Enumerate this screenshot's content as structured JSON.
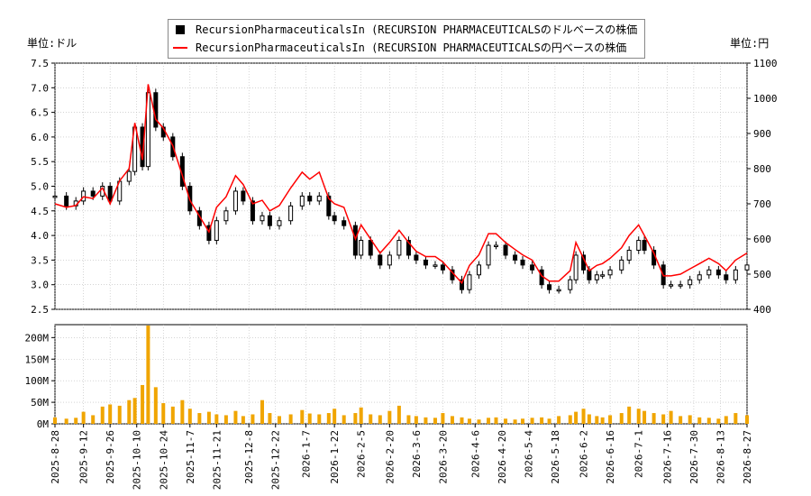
{
  "legend": {
    "usd_label": "RecursionPharmaceuticalsIn (RECURSION PHARMACEUTICALSのドルベースの株価",
    "jpy_label": "RecursionPharmaceuticalsIn (RECURSION PHARMACEUTICALSの円ベースの株価"
  },
  "units": {
    "left": "単位:ドル",
    "right": "単位:円"
  },
  "colors": {
    "candle": "#000000",
    "jpy_line": "#ff0000",
    "volume": "#f0a500",
    "grid": "#bbbbbb"
  },
  "chart_data": [
    {
      "type": "line",
      "title": "",
      "y_left_range": [
        2.5,
        7.5
      ],
      "y_left_ticks": [
        "2.5",
        "3.0",
        "3.5",
        "4.0",
        "4.5",
        "5.0",
        "5.5",
        "6.0",
        "6.5",
        "7.0",
        "7.5"
      ],
      "y_right_range": [
        400,
        1100
      ],
      "y_right_ticks": [
        "400",
        "500",
        "600",
        "700",
        "800",
        "900",
        "1000",
        "1100"
      ],
      "grid": true,
      "legend_position": "top-center",
      "x_date_range": [
        "2025-08-28",
        "2026-08-27"
      ],
      "series": [
        {
          "name": "RecursionPharmaceuticalsIn (RECURSION PHARMACEUTICALSのドルベースの株価",
          "x": [
            "2025-08-28",
            "2025-09-03",
            "2025-09-08",
            "2025-09-12",
            "2025-09-17",
            "2025-09-22",
            "2025-09-26",
            "2025-10-01",
            "2025-10-06",
            "2025-10-09",
            "2025-10-13",
            "2025-10-16",
            "2025-10-20",
            "2025-10-24",
            "2025-10-29",
            "2025-11-03",
            "2025-11-07",
            "2025-11-12",
            "2025-11-17",
            "2025-11-21",
            "2025-11-26",
            "2025-12-01",
            "2025-12-05",
            "2025-12-10",
            "2025-12-15",
            "2025-12-19",
            "2025-12-24",
            "2025-12-30",
            "2026-01-05",
            "2026-01-09",
            "2026-01-14",
            "2026-01-19",
            "2026-01-22",
            "2026-01-27",
            "2026-02-02",
            "2026-02-05",
            "2026-02-10",
            "2026-02-15",
            "2026-02-20",
            "2026-02-25",
            "2026-03-02",
            "2026-03-06",
            "2026-03-11",
            "2026-03-16",
            "2026-03-20",
            "2026-03-25",
            "2026-03-30",
            "2026-04-03",
            "2026-04-08",
            "2026-04-13",
            "2026-04-17",
            "2026-04-22",
            "2026-04-27",
            "2026-05-01",
            "2026-05-06",
            "2026-05-11",
            "2026-05-15",
            "2026-05-20",
            "2026-05-26",
            "2026-05-29",
            "2026-06-02",
            "2026-06-05",
            "2026-06-09",
            "2026-06-12",
            "2026-06-16",
            "2026-06-22",
            "2026-06-26",
            "2026-07-01",
            "2026-07-04",
            "2026-07-09",
            "2026-07-14",
            "2026-07-18",
            "2026-07-23",
            "2026-07-28",
            "2026-08-02",
            "2026-08-07",
            "2026-08-12",
            "2026-08-16",
            "2026-08-21",
            "2026-08-27"
          ],
          "values": [
            4.8,
            4.6,
            4.7,
            4.9,
            4.8,
            5.0,
            4.7,
            5.1,
            5.3,
            6.2,
            5.4,
            6.9,
            6.2,
            6.0,
            5.6,
            5.0,
            4.5,
            4.2,
            3.9,
            4.3,
            4.5,
            4.9,
            4.7,
            4.3,
            4.4,
            4.2,
            4.3,
            4.6,
            4.8,
            4.7,
            4.8,
            4.4,
            4.3,
            4.2,
            3.6,
            3.9,
            3.6,
            3.4,
            3.6,
            3.9,
            3.6,
            3.5,
            3.4,
            3.4,
            3.3,
            3.1,
            2.9,
            3.2,
            3.4,
            3.8,
            3.8,
            3.6,
            3.5,
            3.4,
            3.3,
            3.0,
            2.9,
            2.9,
            3.1,
            3.6,
            3.3,
            3.1,
            3.2,
            3.2,
            3.3,
            3.5,
            3.7,
            3.9,
            3.7,
            3.4,
            3.0,
            3.0,
            3.0,
            3.1,
            3.2,
            3.3,
            3.2,
            3.1,
            3.3,
            3.4
          ]
        },
        {
          "name": "RecursionPharmaceuticalsIn (RECURSION PHARMACEUTICALSの円ベースの株価",
          "x": [
            "2025-08-28",
            "2025-09-03",
            "2025-09-08",
            "2025-09-12",
            "2025-09-17",
            "2025-09-22",
            "2025-09-26",
            "2025-10-01",
            "2025-10-06",
            "2025-10-09",
            "2025-10-13",
            "2025-10-16",
            "2025-10-20",
            "2025-10-24",
            "2025-10-29",
            "2025-11-03",
            "2025-11-07",
            "2025-11-12",
            "2025-11-17",
            "2025-11-21",
            "2025-11-26",
            "2025-12-01",
            "2025-12-05",
            "2025-12-10",
            "2025-12-15",
            "2025-12-19",
            "2025-12-24",
            "2025-12-30",
            "2026-01-05",
            "2026-01-09",
            "2026-01-14",
            "2026-01-19",
            "2026-01-22",
            "2026-01-27",
            "2026-02-02",
            "2026-02-05",
            "2026-02-10",
            "2026-02-15",
            "2026-02-20",
            "2026-02-25",
            "2026-03-02",
            "2026-03-06",
            "2026-03-11",
            "2026-03-16",
            "2026-03-20",
            "2026-03-25",
            "2026-03-30",
            "2026-04-03",
            "2026-04-08",
            "2026-04-13",
            "2026-04-17",
            "2026-04-22",
            "2026-04-27",
            "2026-05-01",
            "2026-05-06",
            "2026-05-11",
            "2026-05-15",
            "2026-05-20",
            "2026-05-26",
            "2026-05-29",
            "2026-06-02",
            "2026-06-05",
            "2026-06-09",
            "2026-06-12",
            "2026-06-16",
            "2026-06-22",
            "2026-06-26",
            "2026-07-01",
            "2026-07-04",
            "2026-07-09",
            "2026-07-14",
            "2026-07-18",
            "2026-07-23",
            "2026-07-28",
            "2026-08-02",
            "2026-08-07",
            "2026-08-12",
            "2026-08-16",
            "2026-08-21",
            "2026-08-27"
          ],
          "values": [
            700,
            690,
            695,
            720,
            715,
            745,
            700,
            765,
            800,
            930,
            825,
            1040,
            940,
            915,
            865,
            780,
            710,
            665,
            620,
            690,
            720,
            780,
            755,
            700,
            710,
            680,
            695,
            745,
            790,
            770,
            790,
            715,
            700,
            690,
            600,
            640,
            600,
            560,
            590,
            625,
            590,
            565,
            550,
            550,
            535,
            505,
            475,
            525,
            555,
            615,
            615,
            590,
            570,
            555,
            540,
            495,
            480,
            480,
            510,
            590,
            545,
            510,
            525,
            530,
            545,
            575,
            610,
            640,
            610,
            560,
            495,
            495,
            500,
            515,
            530,
            545,
            530,
            510,
            540,
            560
          ]
        }
      ]
    },
    {
      "type": "bar",
      "title": "",
      "y_range": [
        0,
        230000000
      ],
      "y_ticks": [
        "0M",
        "50M",
        "100M",
        "150M",
        "200M"
      ],
      "x_tick_labels": [
        "2025-8-28",
        "2025-9-12",
        "2025-9-26",
        "2025-10-10",
        "2025-10-24",
        "2025-11-7",
        "2025-11-21",
        "2025-12-8",
        "2025-12-22",
        "2026-1-7",
        "2026-1-22",
        "2026-2-5",
        "2026-2-20",
        "2026-3-6",
        "2026-3-20",
        "2026-4-6",
        "2026-4-20",
        "2026-5-4",
        "2026-5-18",
        "2026-6-2",
        "2026-6-16",
        "2026-7-1",
        "2026-7-16",
        "2026-7-30",
        "2026-8-13",
        "2026-8-27"
      ],
      "series": [
        {
          "name": "",
          "x": [
            "2025-08-28",
            "2025-09-03",
            "2025-09-08",
            "2025-09-12",
            "2025-09-17",
            "2025-09-22",
            "2025-09-26",
            "2025-10-01",
            "2025-10-06",
            "2025-10-09",
            "2025-10-13",
            "2025-10-16",
            "2025-10-20",
            "2025-10-24",
            "2025-10-29",
            "2025-11-03",
            "2025-11-07",
            "2025-11-12",
            "2025-11-17",
            "2025-11-21",
            "2025-11-26",
            "2025-12-01",
            "2025-12-05",
            "2025-12-10",
            "2025-12-15",
            "2025-12-19",
            "2025-12-24",
            "2025-12-30",
            "2026-01-05",
            "2026-01-09",
            "2026-01-14",
            "2026-01-19",
            "2026-01-22",
            "2026-01-27",
            "2026-02-02",
            "2026-02-05",
            "2026-02-10",
            "2026-02-15",
            "2026-02-20",
            "2026-02-25",
            "2026-03-02",
            "2026-03-06",
            "2026-03-11",
            "2026-03-16",
            "2026-03-20",
            "2026-03-25",
            "2026-03-30",
            "2026-04-03",
            "2026-04-08",
            "2026-04-13",
            "2026-04-17",
            "2026-04-22",
            "2026-04-27",
            "2026-05-01",
            "2026-05-06",
            "2026-05-11",
            "2026-05-15",
            "2026-05-20",
            "2026-05-26",
            "2026-05-29",
            "2026-06-02",
            "2026-06-05",
            "2026-06-09",
            "2026-06-12",
            "2026-06-16",
            "2026-06-22",
            "2026-06-26",
            "2026-07-01",
            "2026-07-04",
            "2026-07-09",
            "2026-07-14",
            "2026-07-18",
            "2026-07-23",
            "2026-07-28",
            "2026-08-02",
            "2026-08-07",
            "2026-08-12",
            "2026-08-16",
            "2026-08-21",
            "2026-08-27"
          ],
          "values": [
            15000000,
            12000000,
            14000000,
            28000000,
            20000000,
            40000000,
            45000000,
            42000000,
            55000000,
            60000000,
            90000000,
            228000000,
            85000000,
            48000000,
            40000000,
            55000000,
            35000000,
            25000000,
            28000000,
            22000000,
            20000000,
            30000000,
            18000000,
            22000000,
            55000000,
            25000000,
            18000000,
            22000000,
            32000000,
            24000000,
            22000000,
            25000000,
            35000000,
            20000000,
            25000000,
            38000000,
            22000000,
            20000000,
            30000000,
            42000000,
            20000000,
            18000000,
            15000000,
            14000000,
            25000000,
            18000000,
            15000000,
            12000000,
            10000000,
            14000000,
            15000000,
            12000000,
            10000000,
            12000000,
            14000000,
            15000000,
            12000000,
            18000000,
            20000000,
            28000000,
            35000000,
            22000000,
            18000000,
            15000000,
            20000000,
            25000000,
            40000000,
            35000000,
            30000000,
            25000000,
            22000000,
            30000000,
            18000000,
            20000000,
            15000000,
            14000000,
            12000000,
            18000000,
            25000000,
            20000000
          ]
        }
      ]
    }
  ]
}
